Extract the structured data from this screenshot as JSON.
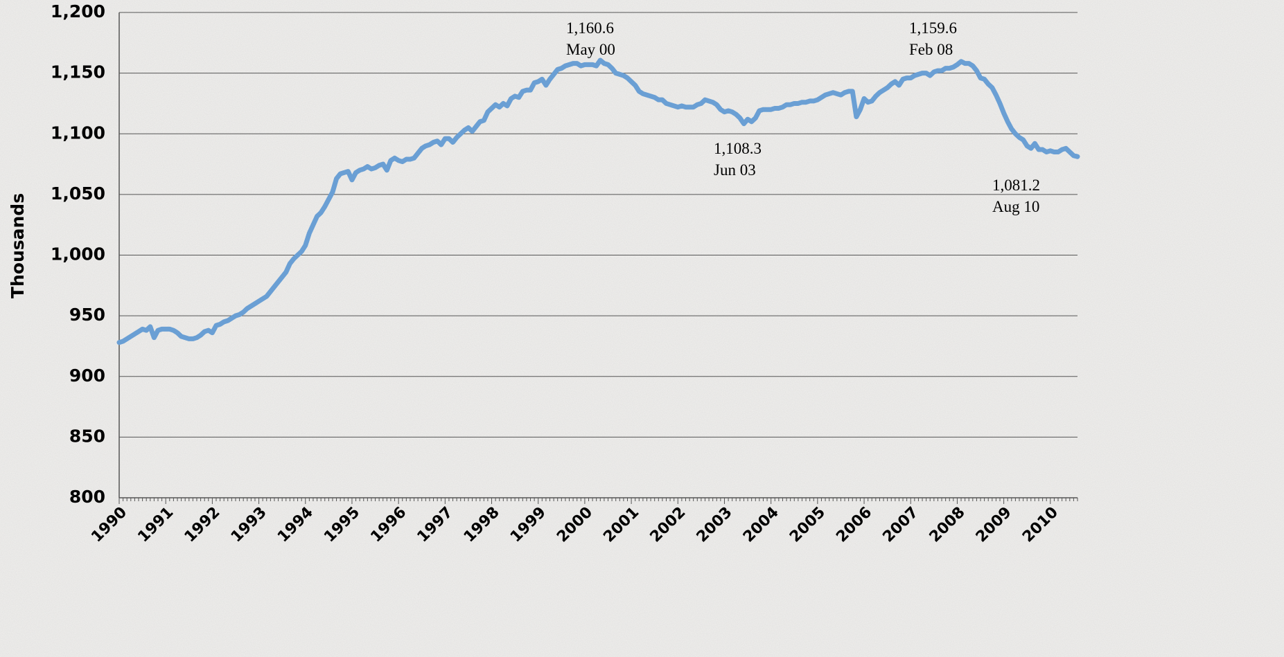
{
  "chart_data": {
    "type": "line",
    "y_axis_label": "Thousands",
    "ylim": [
      800,
      1200
    ],
    "yticks": [
      800,
      850,
      900,
      950,
      {
        "value": 1000,
        "label": "1,000"
      },
      {
        "value": 1050,
        "label": "1,050"
      },
      {
        "value": 1100,
        "label": "1,100"
      },
      {
        "value": 1150,
        "label": "1,150"
      },
      {
        "value": 1200,
        "label": "1,200"
      }
    ],
    "grid": true,
    "annotations": [
      [
        "1,160.6",
        "May 00"
      ],
      [
        "1,108.3",
        "Jun 03"
      ],
      [
        "1,159.6",
        "Feb 08"
      ],
      [
        "1,081.2",
        "Aug 10"
      ]
    ],
    "categories": [
      "1990",
      null,
      null,
      null,
      null,
      null,
      null,
      null,
      null,
      null,
      null,
      null,
      "1991",
      null,
      null,
      null,
      null,
      null,
      null,
      null,
      null,
      null,
      null,
      null,
      "1992",
      null,
      null,
      null,
      null,
      null,
      null,
      null,
      null,
      null,
      null,
      null,
      "1993",
      null,
      null,
      null,
      null,
      null,
      null,
      null,
      null,
      null,
      null,
      null,
      "1994",
      null,
      null,
      null,
      null,
      null,
      null,
      null,
      null,
      null,
      null,
      null,
      "1995",
      null,
      null,
      null,
      null,
      null,
      null,
      null,
      null,
      null,
      null,
      null,
      "1996",
      null,
      null,
      null,
      null,
      null,
      null,
      null,
      null,
      null,
      null,
      null,
      "1997",
      null,
      null,
      null,
      null,
      null,
      null,
      null,
      null,
      null,
      null,
      null,
      "1998",
      null,
      null,
      null,
      null,
      null,
      null,
      null,
      null,
      null,
      null,
      null,
      "1999",
      null,
      null,
      null,
      null,
      null,
      null,
      null,
      null,
      null,
      null,
      null,
      "2000",
      null,
      null,
      null,
      null,
      null,
      null,
      null,
      null,
      null,
      null,
      null,
      "2001",
      null,
      null,
      null,
      null,
      null,
      null,
      null,
      null,
      null,
      null,
      null,
      "2002",
      null,
      null,
      null,
      null,
      null,
      null,
      null,
      null,
      null,
      null,
      null,
      "2003",
      null,
      null,
      null,
      null,
      null,
      null,
      null,
      null,
      null,
      null,
      null,
      "2004",
      null,
      null,
      null,
      null,
      null,
      null,
      null,
      null,
      null,
      null,
      null,
      "2005",
      null,
      null,
      null,
      null,
      null,
      null,
      null,
      null,
      null,
      null,
      null,
      "2006",
      null,
      null,
      null,
      null,
      null,
      null,
      null,
      null,
      null,
      null,
      null,
      "2007",
      null,
      null,
      null,
      null,
      null,
      null,
      null,
      null,
      null,
      null,
      null,
      "2008",
      null,
      null,
      null,
      null,
      null,
      null,
      null,
      null,
      null,
      null,
      null,
      "2009",
      null,
      null,
      null,
      null,
      null,
      null,
      null,
      null,
      null,
      null,
      null,
      "2010",
      null,
      null,
      null,
      null,
      null,
      null,
      null
    ],
    "series": [
      {
        "color": "#6a9fd4",
        "values": [
          928,
          929,
          931,
          933,
          935,
          937,
          939,
          938,
          941,
          932,
          938,
          939,
          939,
          939,
          938,
          936,
          933,
          932,
          931,
          931,
          932,
          934,
          937,
          938,
          936,
          942,
          943,
          945,
          946,
          948,
          950,
          951,
          953,
          956,
          958,
          960,
          962,
          964,
          966,
          970,
          974,
          978,
          982,
          986,
          993,
          997,
          1000,
          1003,
          1008,
          1018,
          1025,
          1032,
          1035,
          1040,
          1046,
          1052,
          1063,
          1067,
          1068,
          1069,
          1062,
          1068,
          1070,
          1071,
          1073,
          1071,
          1072,
          1074,
          1075,
          1070,
          1078,
          1080,
          1078,
          1077,
          1079,
          1079,
          1080,
          1084,
          1088,
          1090,
          1091,
          1093,
          1094,
          1091,
          1096,
          1096,
          1093,
          1097,
          1100,
          1103,
          1105,
          1102,
          1106,
          1110,
          1111,
          1118,
          1121,
          1124,
          1122,
          1125,
          1123,
          1129,
          1131,
          1130,
          1135,
          1136,
          1136,
          1142,
          1143,
          1145,
          1140,
          1145,
          1149,
          1153,
          1154,
          1156,
          1157,
          1158,
          1158,
          1156,
          1157,
          1157,
          1157,
          1156,
          1160.6,
          1158,
          1157,
          1154,
          1150,
          1149,
          1148,
          1146,
          1143,
          1140,
          1135,
          1133,
          1132,
          1131,
          1130,
          1128,
          1128,
          1125,
          1124,
          1123,
          1122,
          1123,
          1122,
          1122,
          1122,
          1124,
          1125,
          1128,
          1127,
          1126,
          1124,
          1120,
          1118,
          1119,
          1118,
          1116,
          1113,
          1108.3,
          1112,
          1110,
          1113,
          1119,
          1120,
          1120,
          1120,
          1121,
          1121,
          1122,
          1124,
          1124,
          1125,
          1125,
          1126,
          1126,
          1127,
          1127,
          1128,
          1130,
          1132,
          1133,
          1134,
          1133,
          1132,
          1134,
          1135,
          1135,
          1114,
          1120,
          1129,
          1126,
          1127,
          1131,
          1134,
          1136,
          1138,
          1141,
          1143,
          1140,
          1145,
          1146,
          1146,
          1148,
          1149,
          1150,
          1150,
          1148,
          1151,
          1152,
          1152,
          1154,
          1154,
          1155,
          1157,
          1159.6,
          1158,
          1158,
          1156,
          1152,
          1146,
          1145,
          1141,
          1138,
          1132,
          1125,
          1117,
          1110,
          1104,
          1100,
          1097,
          1095,
          1090,
          1088,
          1092,
          1087,
          1087,
          1085,
          1086,
          1085,
          1085,
          1087,
          1088,
          1085,
          1082,
          1081.2
        ]
      }
    ]
  }
}
